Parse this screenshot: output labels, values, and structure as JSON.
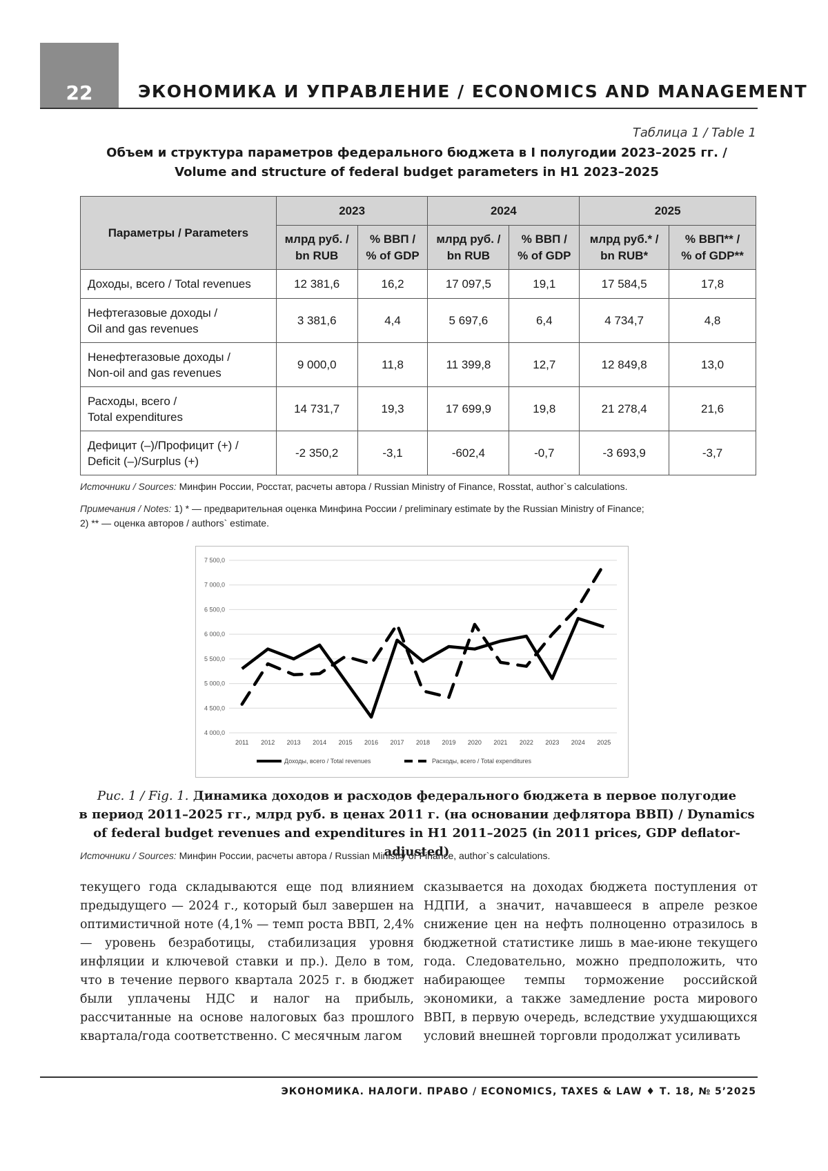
{
  "header": {
    "page_number": "22",
    "journal_section": "ЭКОНОМИКА И УПРАВЛЕНИЕ / ECONOMICS AND MANAGEMENT"
  },
  "table": {
    "label": "Таблица 1 / Table 1",
    "title_ru": "Объем и структура параметров федерального бюджета в I полугодии 2023–2025 гг. /",
    "title_en": "Volume and structure of federal budget parameters in H1 2023–2025",
    "param_header": "Параметры / Parameters",
    "years": [
      "2023",
      "2024",
      "2025"
    ],
    "sub_headers": [
      [
        "млрд руб. /",
        "bn RUB"
      ],
      [
        "% ВВП /",
        "% of GDP"
      ],
      [
        "млрд руб. /",
        "bn RUB"
      ],
      [
        "% ВВП /",
        "% of GDP"
      ],
      [
        "млрд руб.* /",
        "bn RUB*"
      ],
      [
        "% ВВП** /",
        "% of GDP**"
      ]
    ],
    "rows": [
      {
        "p1": "Доходы, всего / Total revenues",
        "p2": "",
        "v": [
          "12 381,6",
          "16,2",
          "17 097,5",
          "19,1",
          "17 584,5",
          "17,8"
        ]
      },
      {
        "p1": "Нефтегазовые доходы /",
        "p2": "Oil and gas revenues",
        "v": [
          "3 381,6",
          "4,4",
          "5 697,6",
          "6,4",
          "4 734,7",
          "4,8"
        ]
      },
      {
        "p1": "Ненефтегазовые доходы /",
        "p2": "Non-oil and gas revenues",
        "v": [
          "9 000,0",
          "11,8",
          "11 399,8",
          "12,7",
          "12 849,8",
          "13,0"
        ]
      },
      {
        "p1": "Расходы, всего /",
        "p2": "Total expenditures",
        "v": [
          "14 731,7",
          "19,3",
          "17 699,9",
          "19,8",
          "21 278,4",
          "21,6"
        ]
      },
      {
        "p1": "Дефицит (–)/Профицит (+) /",
        "p2": "Deficit (–)/Surplus (+)",
        "v": [
          "-2 350,2",
          "-3,1",
          "-602,4",
          "-0,7",
          "-3 693,9",
          "-3,7"
        ]
      }
    ],
    "sources_label": "Источники / Sources:",
    "sources_text": " Минфин России, Росстат, расчеты автора / Russian Ministry of Finance, Rosstat, author`s calculations.",
    "notes_label": "Примечания / Notes:",
    "notes_line1": " 1) * — предварительная оценка Минфина России / preliminary estimate by the Russian Ministry of Finance;",
    "notes_line2": "2) ** — оценка авторов / authors` estimate."
  },
  "chart_data": {
    "type": "line",
    "x": [
      "2011",
      "2012",
      "2013",
      "2014",
      "2015",
      "2016",
      "2017",
      "2018",
      "2019",
      "2020",
      "2021",
      "2022",
      "2023",
      "2024",
      "2025"
    ],
    "y_ticks": [
      "4 000,0",
      "4 500,0",
      "5 000,0",
      "5 500,0",
      "6 000,0",
      "6 500,0",
      "7 000,0",
      "7 500,0"
    ],
    "ylim": [
      4000,
      7500
    ],
    "grid": true,
    "legend_position": "bottom",
    "series": [
      {
        "name": "Доходы, всего / Total revenues",
        "style": "solid",
        "values": [
          5300,
          5700,
          5500,
          5780,
          5050,
          4320,
          5880,
          5450,
          5750,
          5700,
          5860,
          5960,
          5100,
          6320,
          6150
        ]
      },
      {
        "name": "Расходы, всего / Total expenditures",
        "style": "dashed",
        "values": [
          4580,
          5400,
          5180,
          5200,
          5550,
          5400,
          6200,
          4850,
          4720,
          6200,
          5430,
          5350,
          6000,
          6550,
          7420
        ]
      }
    ]
  },
  "figure": {
    "label": "Рис. 1 / Fig. 1.",
    "line1": " Динамика доходов и расходов федерального бюджета в первое полугодие",
    "line2": "в период 2011–2025 гг., млрд руб. в ценах 2011 г. (на основании дефлятора ВВП) / Dynamics",
    "line3": "of federal budget revenues and expenditures in H1 2011–2025 (in 2011 prices, GDP deflator-adjusted)",
    "sources_label": "Источники / Sources:",
    "sources_text": " Минфин России, расчеты автора / Russian Ministry of Finance, author`s calculations."
  },
  "body": {
    "left": "текущего года складываются еще под влиянием предыдущего — 2024 г., который был завершен на оптимистичной ноте (4,1% — темп роста ВВП, 2,4% — уровень безработицы, стабилизация уровня инфляции и ключевой ставки и пр.). Дело в том, что в течение первого квартала 2025 г. в бюджет были уплачены НДС и налог на прибыль, рассчитанные на основе налоговых баз прошлого квартала/года соответственно. С месячным лагом",
    "right": "сказывается на доходах бюджета поступления от НДПИ, а значит, начавшееся в апреле резкое снижение цен на нефть полноценно отразилось в бюджетной статистике лишь в мае-июне текущего года. Следовательно, можно предположить, что набирающее темпы торможение российской экономики, а также замедление роста мирового ВВП, в первую очередь, вследствие ухудшающихся условий внешней торговли продолжат усиливать"
  },
  "footer": {
    "journal": "ЭКОНОМИКА. НАЛОГИ. ПРАВО / ECONOMICS, TAXES & LAW ♦ Т. 18, № 5’2025"
  }
}
